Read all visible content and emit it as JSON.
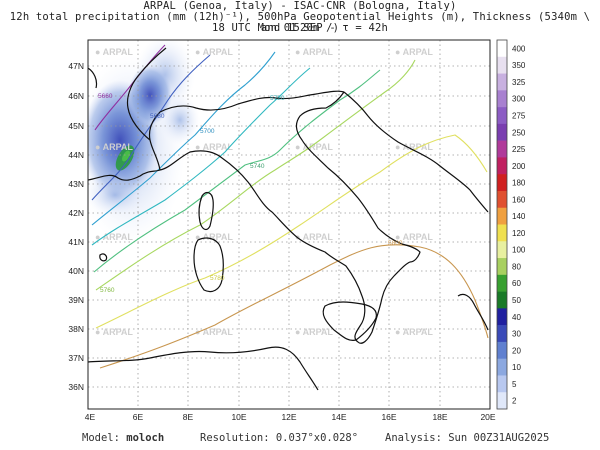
{
  "header": {
    "line1": "ARPAL (Genoa, Italy)  -  ISAC-CNR (Bologna, Italy)",
    "line2": "12h total precipitation (mm (12h)⁻¹), 500hPa Geopotential Heights (m), Thickness (5340m \\ and 1520m /)",
    "line3": "18 UTC Mon 01 SEP  -  τ = 42h"
  },
  "map": {
    "lat_labels": [
      "47N",
      "46N",
      "45N",
      "44N",
      "43N",
      "42N",
      "41N",
      "40N",
      "39N",
      "38N",
      "37N",
      "36N"
    ],
    "lon_labels": [
      "4E",
      "6E",
      "8E",
      "10E",
      "12E",
      "14E",
      "16E",
      "18E",
      "20E"
    ],
    "watermark": "ARPAL",
    "contours": [
      {
        "label": "5800",
        "color": "#c8964f"
      },
      {
        "label": "5780",
        "color": "#e0e060"
      },
      {
        "label": "5760",
        "color": "#a8d860"
      },
      {
        "label": "5740",
        "color": "#50c080"
      },
      {
        "label": "5720",
        "color": "#30b8c0"
      },
      {
        "label": "5700",
        "color": "#30a0d0"
      },
      {
        "label": "5680",
        "color": "#4060c0"
      },
      {
        "label": "5660",
        "color": "#9030a0"
      }
    ]
  },
  "colorbar": {
    "labels": [
      "400",
      "350",
      "325",
      "300",
      "275",
      "250",
      "225",
      "200",
      "180",
      "160",
      "140",
      "120",
      "100",
      "80",
      "60",
      "50",
      "40",
      "30",
      "20",
      "10",
      "5",
      "2"
    ],
    "colors": [
      "#ffffff",
      "#e8e0f0",
      "#c8b0e0",
      "#a880d0",
      "#8c5cc4",
      "#7a3eb0",
      "#b03a9a",
      "#c02060",
      "#d02020",
      "#e05030",
      "#f0a040",
      "#f0e050",
      "#e8f0a0",
      "#a8d060",
      "#38a030",
      "#1a7a28",
      "#2020a0",
      "#3a4ab8",
      "#6080d0",
      "#8ca8e0",
      "#b8c8f0",
      "#e0e8fa"
    ]
  },
  "footer": {
    "model_label": "Model:",
    "model_value": "moloch",
    "resolution": "Resolution: 0.037°x0.028°",
    "analysis": "Analysis: Sun 00Z31AUG2025"
  }
}
